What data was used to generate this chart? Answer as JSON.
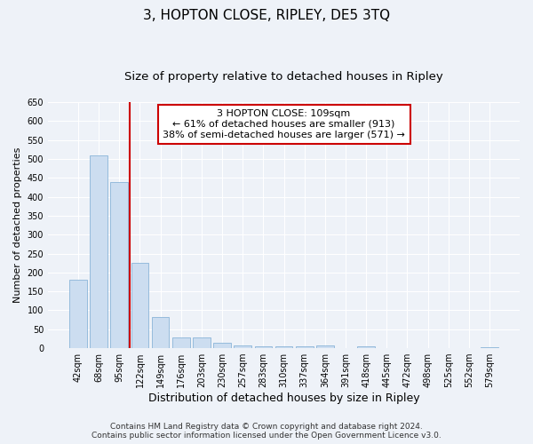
{
  "title": "3, HOPTON CLOSE, RIPLEY, DE5 3TQ",
  "subtitle": "Size of property relative to detached houses in Ripley",
  "xlabel": "Distribution of detached houses by size in Ripley",
  "ylabel": "Number of detached properties",
  "categories": [
    "42sqm",
    "68sqm",
    "95sqm",
    "122sqm",
    "149sqm",
    "176sqm",
    "203sqm",
    "230sqm",
    "257sqm",
    "283sqm",
    "310sqm",
    "337sqm",
    "364sqm",
    "391sqm",
    "418sqm",
    "445sqm",
    "472sqm",
    "498sqm",
    "525sqm",
    "552sqm",
    "579sqm"
  ],
  "values": [
    182,
    510,
    440,
    225,
    83,
    28,
    28,
    14,
    7,
    5,
    5,
    5,
    7,
    0,
    5,
    0,
    0,
    0,
    0,
    0,
    3
  ],
  "bar_color": "#ccddf0",
  "bar_edgecolor": "#8ab4d8",
  "bar_width": 0.85,
  "ylim": [
    0,
    650
  ],
  "yticks": [
    0,
    50,
    100,
    150,
    200,
    250,
    300,
    350,
    400,
    450,
    500,
    550,
    600,
    650
  ],
  "vline_color": "#cc0000",
  "annotation_box_text": "3 HOPTON CLOSE: 109sqm\n← 61% of detached houses are smaller (913)\n38% of semi-detached houses are larger (571) →",
  "annotation_box_color": "#cc0000",
  "background_color": "#eef2f8",
  "footer_line1": "Contains HM Land Registry data © Crown copyright and database right 2024.",
  "footer_line2": "Contains public sector information licensed under the Open Government Licence v3.0.",
  "grid_color": "#ffffff",
  "title_fontsize": 11,
  "subtitle_fontsize": 9.5,
  "xlabel_fontsize": 9,
  "ylabel_fontsize": 8,
  "tick_fontsize": 7,
  "annotation_fontsize": 8,
  "footer_fontsize": 6.5
}
